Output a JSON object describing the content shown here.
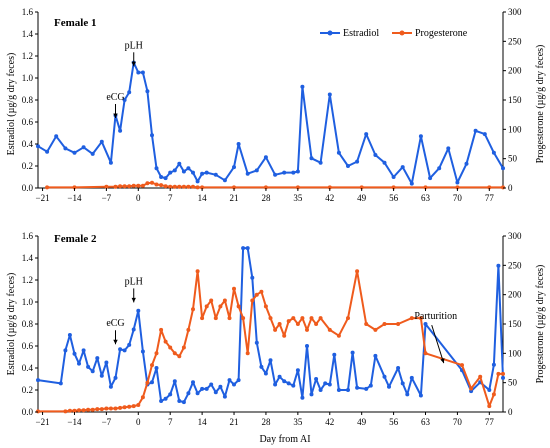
{
  "x_axis_label": "Day from AI",
  "legend": [
    {
      "name": "Estradiol",
      "color": "#1f5fe0"
    },
    {
      "name": "Progesterone",
      "color": "#ef5b1d"
    }
  ],
  "chart_data": [
    {
      "type": "line",
      "title": "Female 1",
      "xlabel": "Day from AI",
      "ylabel": "Estradiol (µg/g dry feces)",
      "y2label": "Progesterone (µg/g dry feces)",
      "xlim": [
        -22,
        80
      ],
      "ylim": [
        0,
        1.6
      ],
      "y2lim": [
        0,
        300
      ],
      "xticks": [
        -21,
        -14,
        -7,
        0,
        7,
        14,
        21,
        28,
        35,
        42,
        49,
        56,
        63,
        70,
        77
      ],
      "yticks": [
        "0.0",
        "0.2",
        "0.4",
        "0.6",
        "0.8",
        "1.0",
        "1.2",
        "1.4",
        "1.6"
      ],
      "y2ticks": [
        "0",
        "50",
        "100",
        "150",
        "200",
        "250",
        "300"
      ],
      "annotations": [
        {
          "text": "eCG",
          "x": -5,
          "y": 0.6
        },
        {
          "text": "pLH",
          "x": -1,
          "y": 1.07
        }
      ],
      "series": [
        {
          "name": "Estradiol",
          "axis": "left",
          "color": "#1f5fe0",
          "x": [
            -22,
            -20,
            -18,
            -16,
            -14,
            -12,
            -10,
            -8,
            -6,
            -5,
            -4,
            -3,
            -2,
            -1,
            0,
            1,
            2,
            3,
            4,
            5,
            6,
            7,
            8,
            9,
            10,
            11,
            12,
            13,
            14,
            15,
            17,
            19,
            21,
            22,
            24,
            26,
            28,
            30,
            32,
            34,
            35,
            36,
            38,
            40,
            42,
            44,
            46,
            48,
            50,
            52,
            54,
            56,
            58,
            60,
            62,
            64,
            66,
            68,
            70,
            72,
            74,
            76,
            78,
            80
          ],
          "y": [
            0.38,
            0.33,
            0.47,
            0.36,
            0.32,
            0.37,
            0.31,
            0.42,
            0.23,
            0.66,
            0.52,
            0.8,
            0.87,
            1.14,
            1.05,
            1.05,
            0.88,
            0.48,
            0.18,
            0.1,
            0.09,
            0.14,
            0.16,
            0.22,
            0.15,
            0.18,
            0.14,
            0.06,
            0.13,
            0.14,
            0.12,
            0.07,
            0.19,
            0.4,
            0.13,
            0.16,
            0.28,
            0.12,
            0.14,
            0.14,
            0.15,
            0.92,
            0.27,
            0.23,
            0.85,
            0.32,
            0.2,
            0.24,
            0.49,
            0.3,
            0.23,
            0.1,
            0.19,
            0.04,
            0.47,
            0.09,
            0.18,
            0.36,
            0.05,
            0.22,
            0.52,
            0.49,
            0.32,
            0.18
          ]
        },
        {
          "name": "Progesterone",
          "axis": "right",
          "color": "#ef5b1d",
          "x": [
            -20,
            -14,
            -7,
            -5,
            -4,
            -3,
            -2,
            -1,
            0,
            1,
            2,
            3,
            4,
            5,
            6,
            7,
            8,
            9,
            10,
            11,
            12,
            13,
            14,
            21,
            28,
            35,
            42,
            49,
            56,
            63,
            70,
            77,
            80
          ],
          "y": [
            1,
            1,
            2,
            2,
            3,
            3,
            3,
            4,
            4,
            4,
            8,
            9,
            6,
            5,
            3,
            2,
            2,
            2,
            2,
            2,
            2,
            1,
            1,
            1,
            1,
            1,
            1,
            1,
            1,
            1,
            1,
            1,
            1
          ]
        }
      ]
    },
    {
      "type": "line",
      "title": "Female 2",
      "xlabel": "Day from AI",
      "ylabel": "Estradiol (µg/g dry feces)",
      "y2label": "Progesterone (µg/g dry feces)",
      "xlim": [
        -22,
        80
      ],
      "ylim": [
        0,
        1.6
      ],
      "y2lim": [
        0,
        300
      ],
      "xticks": [
        -21,
        -14,
        -7,
        0,
        7,
        14,
        21,
        28,
        35,
        42,
        49,
        56,
        63,
        70,
        77
      ],
      "yticks": [
        "0.0",
        "0.2",
        "0.4",
        "0.6",
        "0.8",
        "1.0",
        "1.2",
        "1.4",
        "1.6"
      ],
      "y2ticks": [
        "0",
        "50",
        "100",
        "150",
        "200",
        "250",
        "300"
      ],
      "annotations": [
        {
          "text": "eCG",
          "x": -5,
          "y": 0.58
        },
        {
          "text": "pLH",
          "x": -1,
          "y": 0.96
        },
        {
          "text": "Parturition",
          "x": 67,
          "y": 0.39
        }
      ],
      "series": [
        {
          "name": "Estradiol",
          "axis": "left",
          "color": "#1f5fe0",
          "x": [
            -22,
            -17,
            -16,
            -15,
            -14,
            -13,
            -12,
            -11,
            -10,
            -9,
            -8,
            -7,
            -6,
            -5,
            -4,
            -3,
            -2,
            -1,
            0,
            1,
            2,
            3,
            4,
            5,
            6,
            7,
            8,
            9,
            10,
            11,
            12,
            13,
            14,
            15,
            16,
            17,
            18,
            19,
            20,
            21,
            22,
            23,
            24,
            25,
            26,
            27,
            28,
            29,
            30,
            31,
            32,
            33,
            34,
            35,
            36,
            37,
            38,
            39,
            40,
            41,
            42,
            43,
            44,
            46,
            47,
            48,
            50,
            51,
            52,
            54,
            55,
            57,
            58,
            59,
            60,
            62,
            63,
            71,
            73,
            75,
            77,
            78,
            79,
            80
          ],
          "y": [
            0.29,
            0.26,
            0.56,
            0.7,
            0.53,
            0.44,
            0.56,
            0.41,
            0.37,
            0.49,
            0.33,
            0.45,
            0.23,
            0.31,
            0.57,
            0.56,
            0.61,
            0.75,
            0.92,
            0.55,
            0.25,
            0.27,
            0.4,
            0.1,
            0.12,
            0.16,
            0.28,
            0.1,
            0.09,
            0.17,
            0.27,
            0.17,
            0.21,
            0.21,
            0.25,
            0.18,
            0.23,
            0.14,
            0.29,
            0.25,
            0.29,
            1.49,
            1.49,
            1.22,
            0.63,
            0.41,
            0.35,
            0.47,
            0.25,
            0.32,
            0.28,
            0.26,
            0.24,
            0.38,
            0.13,
            0.6,
            0.16,
            0.3,
            0.2,
            0.26,
            0.25,
            0.52,
            0.2,
            0.2,
            0.54,
            0.22,
            0.21,
            0.24,
            0.51,
            0.32,
            0.23,
            0.4,
            0.26,
            0.16,
            0.31,
            0.15,
            0.8,
            0.38,
            0.19,
            0.27,
            0.2,
            0.43,
            1.33,
            0.31
          ]
        },
        {
          "name": "Progesterone",
          "axis": "right",
          "color": "#ef5b1d",
          "x": [
            -22,
            -16,
            -15,
            -14,
            -13,
            -12,
            -11,
            -10,
            -9,
            -8,
            -7,
            -6,
            -5,
            -4,
            -3,
            -2,
            -1,
            0,
            1,
            2,
            3,
            4,
            5,
            6,
            7,
            8,
            9,
            10,
            11,
            12,
            13,
            14,
            15,
            16,
            17,
            18,
            19,
            20,
            21,
            22,
            23,
            24,
            25,
            26,
            27,
            28,
            29,
            30,
            31,
            32,
            33,
            34,
            35,
            36,
            37,
            38,
            39,
            40,
            42,
            44,
            46,
            48,
            50,
            52,
            54,
            57,
            60,
            62,
            63,
            71,
            73,
            75,
            77,
            78,
            79,
            80
          ],
          "y": [
            1,
            1,
            2,
            2,
            3,
            3,
            4,
            4,
            5,
            5,
            6,
            6,
            6,
            7,
            8,
            9,
            10,
            12,
            25,
            50,
            80,
            100,
            140,
            120,
            110,
            100,
            95,
            110,
            140,
            175,
            240,
            160,
            180,
            190,
            160,
            180,
            190,
            160,
            210,
            180,
            160,
            100,
            190,
            200,
            205,
            180,
            160,
            140,
            150,
            130,
            155,
            160,
            150,
            160,
            140,
            160,
            150,
            160,
            140,
            130,
            160,
            240,
            150,
            140,
            150,
            150,
            160,
            160,
            100,
            80,
            40,
            60,
            10,
            30,
            65,
            65
          ]
        }
      ]
    }
  ]
}
